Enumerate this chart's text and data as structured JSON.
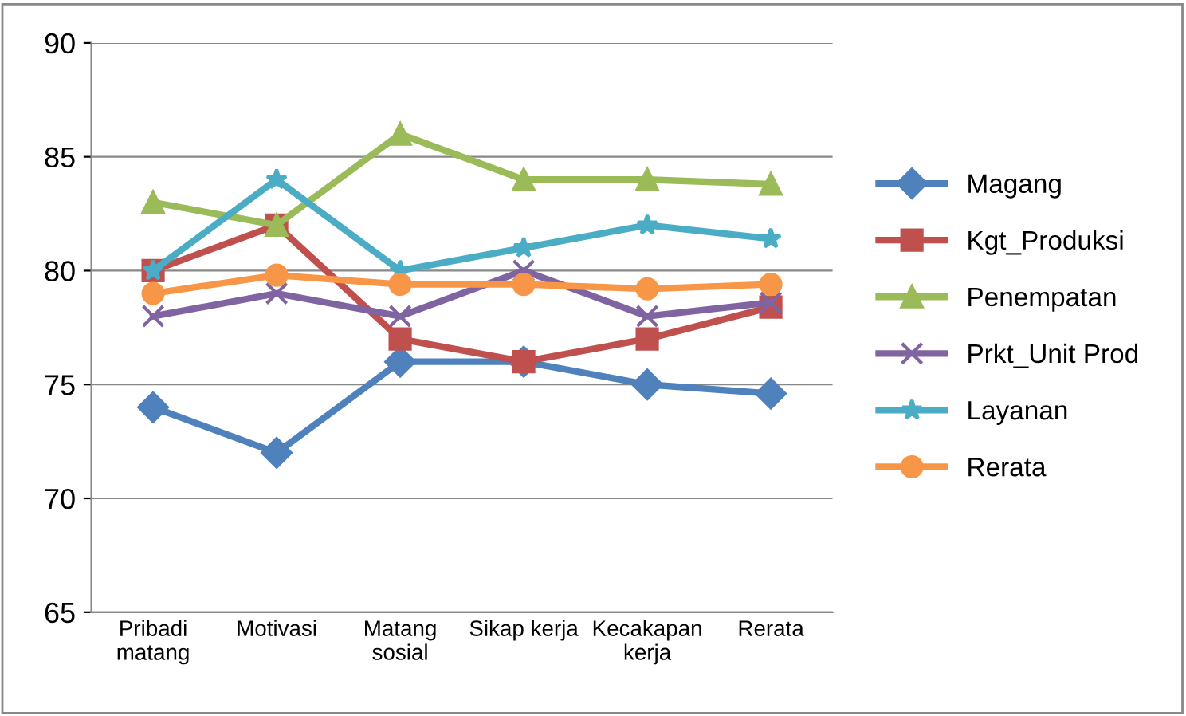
{
  "chart_data": {
    "type": "line",
    "categories": [
      "Pribadi\nmatang",
      "Motivasi",
      "Matang\nsosial",
      "Sikap kerja",
      "Kecakapan\nkerja",
      "Rerata"
    ],
    "ylim": [
      65,
      90
    ],
    "yticks": [
      65,
      70,
      75,
      80,
      85,
      90
    ],
    "grid": "y",
    "legend": "right",
    "series": [
      {
        "name": "Magang",
        "color": "#4f81bd",
        "marker": "diamond",
        "values": [
          74,
          72,
          76,
          76,
          75,
          74.6
        ]
      },
      {
        "name": "Kgt_Produksi",
        "color": "#c0504d",
        "marker": "square",
        "values": [
          80,
          82,
          77,
          76,
          77,
          78.4
        ]
      },
      {
        "name": "Penempatan",
        "color": "#9bbb59",
        "marker": "triangle",
        "values": [
          83,
          82,
          86,
          84,
          84,
          83.8
        ]
      },
      {
        "name": "Prkt_Unit Prod",
        "color": "#8064a2",
        "marker": "cross",
        "values": [
          78,
          79,
          78,
          80,
          78,
          78.6
        ]
      },
      {
        "name": "Layanan",
        "color": "#4bacc6",
        "marker": "star",
        "values": [
          80,
          84,
          80,
          81,
          82,
          81.4
        ]
      },
      {
        "name": "Rerata",
        "color": "#f79646",
        "marker": "circle",
        "values": [
          79,
          79.8,
          79.4,
          79.4,
          79.2,
          79.4
        ]
      }
    ]
  }
}
